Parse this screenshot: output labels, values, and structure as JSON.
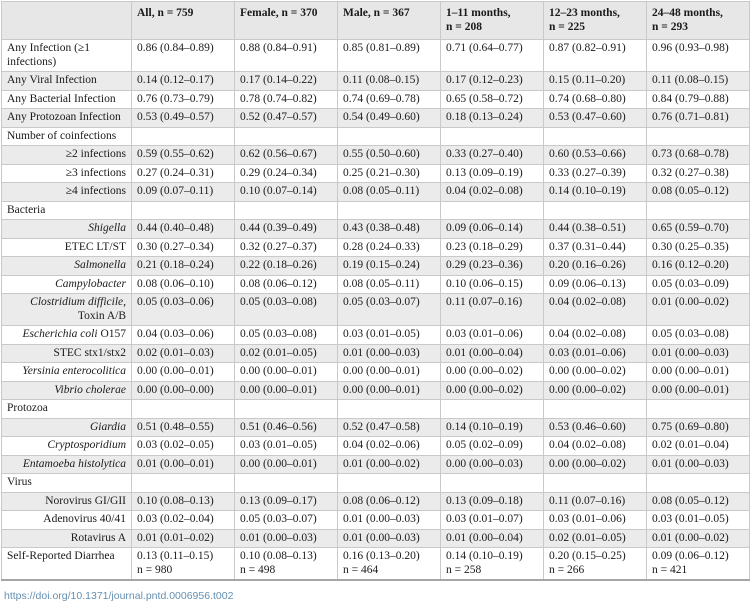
{
  "table": {
    "columns": [
      "",
      "All, n = 759",
      "Female, n = 370",
      "Male, n = 367",
      "1–11 months,\nn = 208",
      "12–23 months,\nn = 225",
      "24–48 months,\nn = 293"
    ],
    "rows": [
      {
        "type": "main",
        "label": "Any Infection (≥1 infections)",
        "italic": false,
        "suffix": "",
        "cells": [
          "0.86 (0.84–0.89)",
          "0.88 (0.84–0.91)",
          "0.85 (0.81–0.89)",
          "0.71 (0.64–0.77)",
          "0.87 (0.82–0.91)",
          "0.96 (0.93–0.98)"
        ]
      },
      {
        "type": "main",
        "label": "Any Viral Infection",
        "italic": false,
        "suffix": "",
        "cells": [
          "0.14 (0.12–0.17)",
          "0.17 (0.14–0.22)",
          "0.11 (0.08–0.15)",
          "0.17 (0.12–0.23)",
          "0.15 (0.11–0.20)",
          "0.11 (0.08–0.15)"
        ]
      },
      {
        "type": "main",
        "label": "Any Bacterial Infection",
        "italic": false,
        "suffix": "",
        "cells": [
          "0.76 (0.73–0.79)",
          "0.78 (0.74–0.82)",
          "0.74 (0.69–0.78)",
          "0.65 (0.58–0.72)",
          "0.74 (0.68–0.80)",
          "0.84 (0.79–0.88)"
        ]
      },
      {
        "type": "main",
        "label": "Any Protozoan Infection",
        "italic": false,
        "suffix": "",
        "cells": [
          "0.53 (0.49–0.57)",
          "0.52 (0.47–0.57)",
          "0.54 (0.49–0.60)",
          "0.18 (0.13–0.24)",
          "0.53 (0.47–0.60)",
          "0.76 (0.71–0.81)"
        ]
      },
      {
        "type": "section",
        "label": "Number of coinfections",
        "italic": false,
        "suffix": "",
        "cells": [
          "",
          "",
          "",
          "",
          "",
          ""
        ]
      },
      {
        "type": "sub",
        "label": "≥2 infections",
        "italic": false,
        "suffix": "",
        "cells": [
          "0.59 (0.55–0.62)",
          "0.62 (0.56–0.67)",
          "0.55 (0.50–0.60)",
          "0.33 (0.27–0.40)",
          "0.60 (0.53–0.66)",
          "0.73 (0.68–0.78)"
        ]
      },
      {
        "type": "sub",
        "label": "≥3 infections",
        "italic": false,
        "suffix": "",
        "cells": [
          "0.27 (0.24–0.31)",
          "0.29 (0.24–0.34)",
          "0.25 (0.21–0.30)",
          "0.13 (0.09–0.19)",
          "0.33 (0.27–0.39)",
          "0.32 (0.27–0.38)"
        ]
      },
      {
        "type": "sub",
        "label": "≥4 infections",
        "italic": false,
        "suffix": "",
        "cells": [
          "0.09 (0.07–0.11)",
          "0.10 (0.07–0.14)",
          "0.08 (0.05–0.11)",
          "0.04 (0.02–0.08)",
          "0.14 (0.10–0.19)",
          "0.08 (0.05–0.12)"
        ]
      },
      {
        "type": "section",
        "label": "Bacteria",
        "italic": false,
        "suffix": "",
        "cells": [
          "",
          "",
          "",
          "",
          "",
          ""
        ]
      },
      {
        "type": "sub",
        "label": "Shigella",
        "italic": true,
        "suffix": "",
        "cells": [
          "0.44 (0.40–0.48)",
          "0.44 (0.39–0.49)",
          "0.43 (0.38–0.48)",
          "0.09 (0.06–0.14)",
          "0.44 (0.38–0.51)",
          "0.65 (0.59–0.70)"
        ]
      },
      {
        "type": "sub",
        "label": "ETEC LT/ST",
        "italic": false,
        "suffix": "",
        "cells": [
          "0.30 (0.27–0.34)",
          "0.32 (0.27–0.37)",
          "0.28 (0.24–0.33)",
          "0.23 (0.18–0.29)",
          "0.37 (0.31–0.44)",
          "0.30 (0.25–0.35)"
        ]
      },
      {
        "type": "sub",
        "label": "Salmonella",
        "italic": true,
        "suffix": "",
        "cells": [
          "0.21 (0.18–0.24)",
          "0.22 (0.18–0.26)",
          "0.19 (0.15–0.24)",
          "0.29 (0.23–0.36)",
          "0.20 (0.16–0.26)",
          "0.16 (0.12–0.20)"
        ]
      },
      {
        "type": "sub",
        "label": "Campylobacter",
        "italic": true,
        "suffix": "",
        "cells": [
          "0.08 (0.06–0.10)",
          "0.08 (0.06–0.12)",
          "0.08 (0.05–0.11)",
          "0.10 (0.06–0.15)",
          "0.09 (0.06–0.13)",
          "0.05 (0.03–0.09)"
        ]
      },
      {
        "type": "sub",
        "label": "Clostridium difficile",
        "italic": true,
        "suffix": ", Toxin A/B",
        "cells": [
          "0.05 (0.03–0.06)",
          "0.05 (0.03–0.08)",
          "0.05 (0.03–0.07)",
          "0.11 (0.07–0.16)",
          "0.04 (0.02–0.08)",
          "0.01 (0.00–0.02)"
        ]
      },
      {
        "type": "sub",
        "label": "Escherichia coli",
        "italic": true,
        "suffix": " O157",
        "cells": [
          "0.04 (0.03–0.06)",
          "0.05 (0.03–0.08)",
          "0.03 (0.01–0.05)",
          "0.03 (0.01–0.06)",
          "0.04 (0.02–0.08)",
          "0.05 (0.03–0.08)"
        ]
      },
      {
        "type": "sub",
        "label": "STEC stx1/stx2",
        "italic": false,
        "suffix": "",
        "cells": [
          "0.02 (0.01–0.03)",
          "0.02 (0.01–0.05)",
          "0.01 (0.00–0.03)",
          "0.01 (0.00–0.04)",
          "0.03 (0.01–0.06)",
          "0.01 (0.00–0.03)"
        ]
      },
      {
        "type": "sub",
        "label": "Yersinia enterocolitica",
        "italic": true,
        "suffix": "",
        "cells": [
          "0.00 (0.00–0.01)",
          "0.00 (0.00–0.01)",
          "0.00 (0.00–0.01)",
          "0.00 (0.00–0.02)",
          "0.00 (0.00–0.02)",
          "0.00 (0.00–0.01)"
        ]
      },
      {
        "type": "sub",
        "label": "Vibrio cholerae",
        "italic": true,
        "suffix": "",
        "cells": [
          "0.00 (0.00–0.00)",
          "0.00 (0.00–0.01)",
          "0.00 (0.00–0.01)",
          "0.00 (0.00–0.02)",
          "0.00 (0.00–0.02)",
          "0.00 (0.00–0.01)"
        ]
      },
      {
        "type": "section",
        "label": "Protozoa",
        "italic": false,
        "suffix": "",
        "cells": [
          "",
          "",
          "",
          "",
          "",
          ""
        ]
      },
      {
        "type": "sub",
        "label": "Giardia",
        "italic": true,
        "suffix": "",
        "cells": [
          "0.51 (0.48–0.55)",
          "0.51 (0.46–0.56)",
          "0.52 (0.47–0.58)",
          "0.14 (0.10–0.19)",
          "0.53 (0.46–0.60)",
          "0.75 (0.69–0.80)"
        ]
      },
      {
        "type": "sub",
        "label": "Cryptosporidium",
        "italic": true,
        "suffix": "",
        "cells": [
          "0.03 (0.02–0.05)",
          "0.03 (0.01–0.05)",
          "0.04 (0.02–0.06)",
          "0.05 (0.02–0.09)",
          "0.04 (0.02–0.08)",
          "0.02 (0.01–0.04)"
        ]
      },
      {
        "type": "sub",
        "label": "Entamoeba histolytica",
        "italic": true,
        "suffix": "",
        "cells": [
          "0.01 (0.00–0.01)",
          "0.00 (0.00–0.01)",
          "0.01 (0.00–0.02)",
          "0.00 (0.00–0.03)",
          "0.00 (0.00–0.02)",
          "0.01 (0.00–0.03)"
        ]
      },
      {
        "type": "section",
        "label": "Virus",
        "italic": false,
        "suffix": "",
        "cells": [
          "",
          "",
          "",
          "",
          "",
          ""
        ]
      },
      {
        "type": "sub",
        "label": "Norovirus GI/GII",
        "italic": false,
        "suffix": "",
        "cells": [
          "0.10 (0.08–0.13)",
          "0.13 (0.09–0.17)",
          "0.08 (0.06–0.12)",
          "0.13 (0.09–0.18)",
          "0.11 (0.07–0.16)",
          "0.08 (0.05–0.12)"
        ]
      },
      {
        "type": "sub",
        "label": "Adenovirus 40/41",
        "italic": false,
        "suffix": "",
        "cells": [
          "0.03 (0.02–0.04)",
          "0.05 (0.03–0.07)",
          "0.01 (0.00–0.03)",
          "0.03 (0.01–0.07)",
          "0.03 (0.01–0.06)",
          "0.03 (0.01–0.05)"
        ]
      },
      {
        "type": "sub",
        "label": "Rotavirus A",
        "italic": false,
        "suffix": "",
        "cells": [
          "0.01 (0.01–0.02)",
          "0.01 (0.00–0.03)",
          "0.01 (0.00–0.03)",
          "0.01 (0.00–0.04)",
          "0.02 (0.01–0.05)",
          "0.01 (0.00–0.02)"
        ]
      },
      {
        "type": "main",
        "label": "Self-Reported Diarrhea",
        "italic": false,
        "suffix": "",
        "cells": [
          "0.13 (0.11–0.15)\nn = 980",
          "0.10 (0.08–0.13)\nn = 498",
          "0.16 (0.13–0.20)\nn = 464",
          "0.14 (0.10–0.19)\nn = 258",
          "0.20 (0.15–0.25)\nn = 266",
          "0.09 (0.06–0.12)\nn = 421"
        ]
      }
    ]
  },
  "footer": {
    "doi": "https://doi.org/10.1371/journal.pntd.0006956.t002"
  }
}
